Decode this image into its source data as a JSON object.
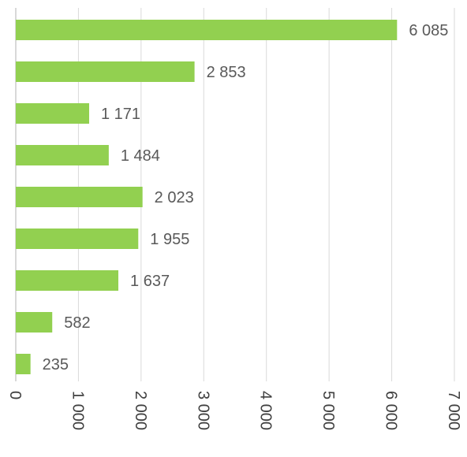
{
  "chart_data": {
    "type": "bar",
    "orientation": "horizontal",
    "values": [
      6085,
      2853,
      1171,
      1484,
      2023,
      1955,
      1637,
      582,
      235
    ],
    "value_labels": [
      "6 085",
      "2 853",
      "1 171",
      "1 484",
      "2 023",
      "1 955",
      "1 637",
      "582",
      "235"
    ],
    "xlim": [
      0,
      7000
    ],
    "x_ticks": [
      0,
      1000,
      2000,
      3000,
      4000,
      5000,
      6000,
      7000
    ],
    "x_tick_labels": [
      "0",
      "1 000",
      "2 000",
      "3 000",
      "4 000",
      "5 000",
      "6 000",
      "7 000"
    ],
    "tick_label_rotation": "vertical",
    "grid": true,
    "bar_color": "#92d050",
    "gridline_color": "#d9d9d9",
    "label_color": "#595959"
  }
}
